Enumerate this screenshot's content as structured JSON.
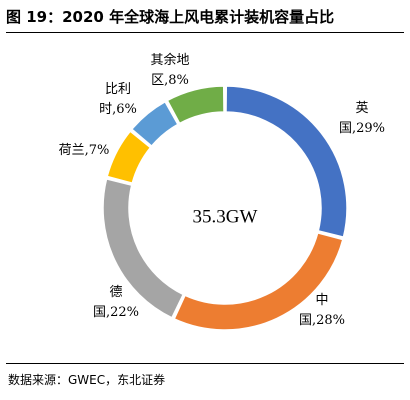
{
  "header": {
    "title": "图 19：2020 年全球海上风电累计装机容量占比"
  },
  "footer": {
    "source": "数据来源：GWEC，东北证券"
  },
  "chart_data": {
    "type": "pie",
    "subtype": "donut",
    "center_label": "35.3GW",
    "slices": [
      {
        "name": "英国",
        "value": 29,
        "label_lines": [
          "英",
          "国,29%"
        ],
        "color": "#4472C4"
      },
      {
        "name": "中国",
        "value": 28,
        "label_lines": [
          "中",
          "国,28%"
        ],
        "color": "#ED7D31"
      },
      {
        "name": "德国",
        "value": 22,
        "label_lines": [
          "德",
          "国,22%"
        ],
        "color": "#A5A5A5"
      },
      {
        "name": "荷兰",
        "value": 7,
        "label_lines": [
          "荷兰,7%"
        ],
        "color": "#FFC000"
      },
      {
        "name": "比利时",
        "value": 6,
        "label_lines": [
          "比利",
          "时,6%"
        ],
        "color": "#5B9BD5"
      },
      {
        "name": "其余地区",
        "value": 8,
        "label_lines": [
          "其余地",
          "区,8%"
        ],
        "color": "#70AD47"
      }
    ],
    "start_angle": "12 o'clock",
    "direction": "clockwise",
    "legend": "none"
  }
}
